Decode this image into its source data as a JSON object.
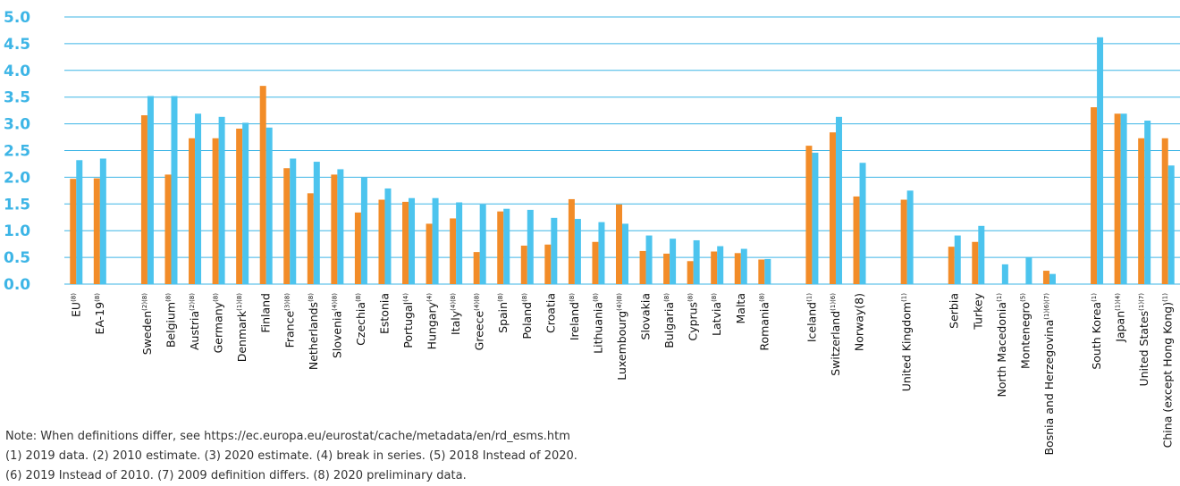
{
  "chart_data": {
    "type": "bar",
    "ylim": [
      0,
      5.0
    ],
    "yticks": [
      "0.0",
      "0.5",
      "1.0",
      "1.5",
      "2.0",
      "2.5",
      "3.0",
      "3.5",
      "4.0",
      "4.5",
      "5.0"
    ],
    "grid": true,
    "colors": {
      "series1": "#f28c28",
      "series2": "#4cc4ee",
      "gridline": "#3db5e6",
      "ytick": "#3db5e6"
    },
    "categories": [
      {
        "name": "EU",
        "sup": "(8)"
      },
      {
        "name": "EA-19",
        "sup": "(8)"
      },
      {
        "name": "",
        "sup": ""
      },
      {
        "name": "Sweden",
        "sup": "(2)(8)"
      },
      {
        "name": "Belgium",
        "sup": "(8)"
      },
      {
        "name": "Austria",
        "sup": "(2)(8)"
      },
      {
        "name": "Germany",
        "sup": "(8)"
      },
      {
        "name": "Denmark",
        "sup": "(1)(8)"
      },
      {
        "name": "Finland",
        "sup": ""
      },
      {
        "name": "France",
        "sup": "(3)(8)"
      },
      {
        "name": "Netherlands",
        "sup": "(8)"
      },
      {
        "name": "Slovenia",
        "sup": "(4)(8)"
      },
      {
        "name": "Czechia",
        "sup": "(8)"
      },
      {
        "name": "Estonia",
        "sup": ""
      },
      {
        "name": "Portugal",
        "sup": "(4)"
      },
      {
        "name": "Hungary",
        "sup": "(4)"
      },
      {
        "name": "Italy",
        "sup": "(4)(8)"
      },
      {
        "name": "Greece",
        "sup": "(4)(8)"
      },
      {
        "name": "Spain",
        "sup": "(8)"
      },
      {
        "name": "Poland",
        "sup": "(8)"
      },
      {
        "name": "Croatia",
        "sup": ""
      },
      {
        "name": "Ireland",
        "sup": "(8)"
      },
      {
        "name": "Lithuania",
        "sup": "(8)"
      },
      {
        "name": "Luxembourg",
        "sup": "(4)(8)"
      },
      {
        "name": "Slovakia",
        "sup": ""
      },
      {
        "name": "Bulgaria",
        "sup": "(8)"
      },
      {
        "name": "Cyprus",
        "sup": "(8)"
      },
      {
        "name": "Latvia",
        "sup": "(8)"
      },
      {
        "name": "Malta",
        "sup": ""
      },
      {
        "name": "Romania",
        "sup": "(8)"
      },
      {
        "name": "",
        "sup": ""
      },
      {
        "name": "Iceland",
        "sup": "(1)"
      },
      {
        "name": "Switzerland",
        "sup": "(1)(6)"
      },
      {
        "name": "Norway(8)",
        "sup": ""
      },
      {
        "name": "",
        "sup": ""
      },
      {
        "name": "United Kingdom",
        "sup": "(1)"
      },
      {
        "name": "",
        "sup": ""
      },
      {
        "name": "Serbia",
        "sup": ""
      },
      {
        "name": "Turkey",
        "sup": ""
      },
      {
        "name": "North Macedonia",
        "sup": "(1)"
      },
      {
        "name": "Montenegro",
        "sup": "(5)"
      },
      {
        "name": "Bosnia and Herzegovina",
        "sup": "(1)(6)(7)"
      },
      {
        "name": "",
        "sup": ""
      },
      {
        "name": "South Korea",
        "sup": "(1)"
      },
      {
        "name": "Japan",
        "sup": "(1)(4)"
      },
      {
        "name": "United States",
        "sup": "(1)(7)"
      },
      {
        "name": "China (except Hong Kong)",
        "sup": "(1)"
      }
    ],
    "series": [
      {
        "values": [
          1.97,
          1.98,
          null,
          3.16,
          2.05,
          2.73,
          2.73,
          2.91,
          3.71,
          2.17,
          1.7,
          2.05,
          1.34,
          1.58,
          1.54,
          1.13,
          1.23,
          0.6,
          1.36,
          0.72,
          0.74,
          1.59,
          0.79,
          1.49,
          0.62,
          0.57,
          0.43,
          0.61,
          0.58,
          0.46,
          null,
          2.59,
          2.84,
          1.64,
          null,
          1.58,
          null,
          0.7,
          0.79,
          null,
          null,
          0.25,
          null,
          3.31,
          3.19,
          2.73,
          2.73
        ]
      },
      {
        "values": [
          2.32,
          2.35,
          null,
          3.52,
          3.52,
          3.19,
          3.13,
          3.02,
          2.93,
          2.35,
          2.29,
          2.15,
          1.99,
          1.79,
          1.61,
          1.61,
          1.53,
          1.49,
          1.41,
          1.39,
          1.24,
          1.22,
          1.16,
          1.13,
          0.91,
          0.85,
          0.82,
          0.71,
          0.66,
          0.47,
          null,
          2.46,
          3.13,
          2.27,
          null,
          1.75,
          null,
          0.91,
          1.09,
          0.37,
          0.5,
          0.19,
          null,
          4.62,
          3.19,
          3.06,
          2.22
        ]
      }
    ]
  },
  "notes": [
    "Note: When definitions differ, see https://ec.europa.eu/eurostat/cache/metadata/en/rd_esms.htm",
    "(1) 2019 data. (2) 2010 estimate. (3) 2020 estimate. (4) break in series. (5) 2018 Instead of 2020.",
    "(6) 2019 Instead of 2010. (7) 2009 definition differs. (8) 2020 preliminary data."
  ]
}
